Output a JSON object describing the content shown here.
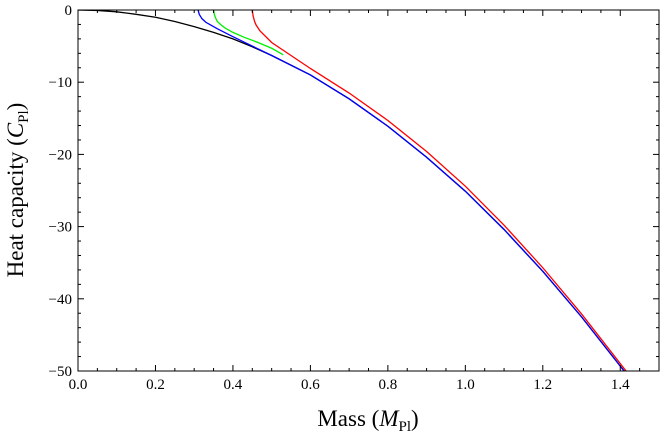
{
  "chart_data": {
    "type": "line",
    "xlabel": {
      "text": "Mass (",
      "var": "M",
      "sub": "Pl",
      "close": ")"
    },
    "ylabel": {
      "text": "Heat capacity (",
      "var": "C",
      "sub": "Pl",
      "close": ")"
    },
    "xlim": [
      0,
      1.5
    ],
    "ylim": [
      -50,
      0
    ],
    "x_ticks": [
      0.0,
      0.2,
      0.4,
      0.6,
      0.8,
      1.0,
      1.2,
      1.4
    ],
    "x_tick_labels": [
      "0.0",
      "0.2",
      "0.4",
      "0.6",
      "0.8",
      "1.0",
      "1.2",
      "1.4"
    ],
    "y_ticks": [
      0,
      -10,
      -20,
      -30,
      -40,
      -50
    ],
    "y_tick_labels": [
      "0",
      "−10",
      "−20",
      "−30",
      "−40",
      "−50"
    ],
    "grid": false,
    "legend": "none",
    "series": [
      {
        "color": "#000000",
        "x": [
          0,
          0.05,
          0.1,
          0.15,
          0.2,
          0.25,
          0.3,
          0.35,
          0.4,
          0.45,
          0.5,
          0.6,
          0.7,
          0.8,
          0.9,
          1.0,
          1.1,
          1.2,
          1.3,
          1.41
        ],
        "y": [
          0,
          -0.06,
          -0.25,
          -0.6,
          -1.0,
          -1.6,
          -2.3,
          -3.1,
          -4.0,
          -5.1,
          -6.3,
          -9.0,
          -12.3,
          -16.1,
          -20.4,
          -25.1,
          -30.4,
          -36.2,
          -42.5,
          -50
        ]
      },
      {
        "color": "#0000ff",
        "x": [
          0.31,
          0.313,
          0.32,
          0.33,
          0.34,
          0.36,
          0.4,
          0.45,
          0.5,
          0.6,
          0.7,
          0.8,
          0.9,
          1.0,
          1.1,
          1.2,
          1.3,
          1.41
        ],
        "y": [
          0,
          -0.6,
          -1.2,
          -1.7,
          -2.0,
          -2.6,
          -3.7,
          -5.0,
          -6.3,
          -9.0,
          -12.3,
          -16.1,
          -20.4,
          -25.1,
          -30.4,
          -36.2,
          -42.5,
          -50
        ]
      },
      {
        "color": "#00ee00",
        "x": [
          0.35,
          0.352,
          0.356,
          0.36,
          0.37,
          0.38,
          0.4,
          0.43,
          0.46,
          0.5,
          0.53
        ],
        "y": [
          0,
          -0.6,
          -1.2,
          -1.6,
          -2.1,
          -2.5,
          -3.1,
          -3.8,
          -4.4,
          -5.3,
          -6.2
        ]
      },
      {
        "color": "#ff0000",
        "x": [
          0.45,
          0.452,
          0.456,
          0.46,
          0.47,
          0.5,
          0.55,
          0.6,
          0.7,
          0.8,
          0.9,
          1.0,
          1.1,
          1.2,
          1.3,
          1.415
        ],
        "y": [
          0,
          -0.8,
          -1.6,
          -2.1,
          -2.9,
          -4.5,
          -6.3,
          -8.1,
          -11.5,
          -15.3,
          -19.6,
          -24.4,
          -29.8,
          -35.7,
          -42.1,
          -50
        ]
      }
    ]
  }
}
